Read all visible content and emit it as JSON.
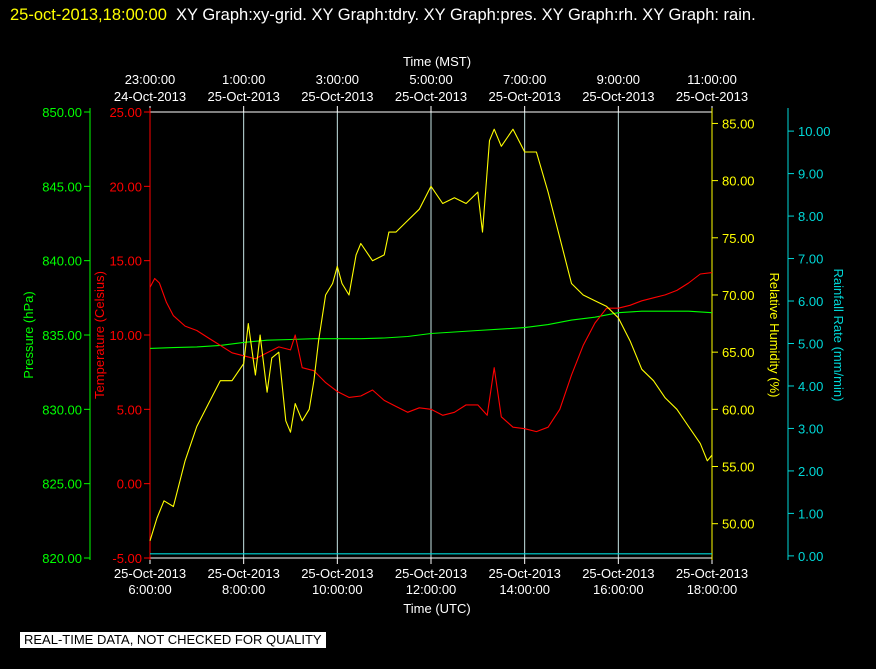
{
  "title": {
    "timestamp": "25-oct-2013,18:00:00",
    "graphs": "XY Graph:xy-grid.  XY Graph:tdry.  XY Graph:pres.  XY Graph:rh.  XY Graph: rain."
  },
  "disclaimer": "REAL-TIME DATA, NOT CHECKED FOR QUALITY",
  "colors": {
    "background": "#000000",
    "grid": "#c8e6e6",
    "axes": "#ffffff",
    "pressure": "#00ff00",
    "temperature": "#ff0000",
    "humidity": "#ffff00",
    "rain": "#00d8d8"
  },
  "chart_data": {
    "type": "line",
    "x_top_title": "Time (MST)",
    "x_bottom_title": "Time (UTC)",
    "x_range_utc_hours": [
      6,
      18
    ],
    "grid": true,
    "x_ticks_top": [
      {
        "time": "23:00:00",
        "date": "24-Oct-2013"
      },
      {
        "time": "1:00:00",
        "date": "25-Oct-2013"
      },
      {
        "time": "3:00:00",
        "date": "25-Oct-2013"
      },
      {
        "time": "5:00:00",
        "date": "25-Oct-2013"
      },
      {
        "time": "7:00:00",
        "date": "25-Oct-2013"
      },
      {
        "time": "9:00:00",
        "date": "25-Oct-2013"
      },
      {
        "time": "11:00:00",
        "date": "25-Oct-2013"
      }
    ],
    "x_ticks_bottom": [
      {
        "date": "25-Oct-2013",
        "time": "6:00:00"
      },
      {
        "date": "25-Oct-2013",
        "time": "8:00:00"
      },
      {
        "date": "25-Oct-2013",
        "time": "10:00:00"
      },
      {
        "date": "25-Oct-2013",
        "time": "12:00:00"
      },
      {
        "date": "25-Oct-2013",
        "time": "14:00:00"
      },
      {
        "date": "25-Oct-2013",
        "time": "16:00:00"
      },
      {
        "date": "25-Oct-2013",
        "time": "18:00:00"
      }
    ],
    "axes": {
      "pressure": {
        "label": "Pressure (hPa)",
        "range": [
          820,
          850
        ],
        "ticks": [
          "820.00",
          "825.00",
          "830.00",
          "835.00",
          "840.00",
          "845.00",
          "850.00"
        ]
      },
      "temperature": {
        "label": "Temperature (Celsius)",
        "range": [
          -5,
          25
        ],
        "ticks": [
          "-5.00",
          "0.00",
          "5.00",
          "10.00",
          "15.00",
          "20.00",
          "25.00"
        ]
      },
      "humidity": {
        "label": "Relative Humidity (%)",
        "range": [
          47,
          86
        ],
        "ticks": [
          "50.00",
          "55.00",
          "60.00",
          "65.00",
          "70.00",
          "75.00",
          "80.00",
          "85.00"
        ]
      },
      "rain": {
        "label": "Rainfall Rate (mm/min)",
        "range": [
          -0.05,
          10.45
        ],
        "ticks": [
          "0.00",
          "1.00",
          "2.00",
          "3.00",
          "4.00",
          "5.00",
          "6.00",
          "7.00",
          "8.00",
          "9.00",
          "10.00"
        ]
      }
    },
    "series": [
      {
        "key": "pressure",
        "axis": "pressure",
        "x_utc_hours": [
          6.0,
          6.5,
          7.0,
          7.5,
          8.0,
          8.5,
          9.0,
          9.5,
          10.0,
          10.5,
          11.0,
          11.5,
          12.0,
          12.5,
          13.0,
          13.5,
          14.0,
          14.5,
          15.0,
          15.5,
          16.0,
          16.5,
          17.0,
          17.5,
          18.0
        ],
        "values": [
          834.1,
          834.15,
          834.2,
          834.3,
          834.5,
          834.65,
          834.7,
          834.75,
          834.75,
          834.75,
          834.8,
          834.9,
          835.1,
          835.2,
          835.3,
          835.4,
          835.5,
          835.7,
          836.0,
          836.2,
          836.5,
          836.6,
          836.6,
          836.6,
          836.5
        ]
      },
      {
        "key": "temperature",
        "axis": "temperature",
        "x_utc_hours": [
          6.0,
          6.1,
          6.2,
          6.35,
          6.5,
          6.75,
          7.0,
          7.25,
          7.5,
          7.75,
          8.0,
          8.25,
          8.5,
          8.75,
          9.0,
          9.1,
          9.25,
          9.5,
          9.75,
          10.0,
          10.25,
          10.5,
          10.75,
          11.0,
          11.25,
          11.5,
          11.75,
          12.0,
          12.25,
          12.5,
          12.75,
          13.0,
          13.2,
          13.35,
          13.5,
          13.75,
          14.0,
          14.25,
          14.5,
          14.75,
          15.0,
          15.25,
          15.5,
          15.75,
          16.0,
          16.25,
          16.5,
          16.75,
          17.0,
          17.25,
          17.5,
          17.75,
          18.0
        ],
        "values": [
          13.2,
          13.8,
          13.5,
          12.2,
          11.3,
          10.6,
          10.3,
          9.8,
          9.3,
          8.8,
          8.6,
          8.4,
          8.8,
          9.2,
          9.0,
          10.0,
          7.8,
          7.6,
          6.8,
          6.2,
          5.8,
          5.9,
          6.3,
          5.6,
          5.2,
          4.8,
          5.1,
          5.0,
          4.6,
          4.8,
          5.3,
          5.3,
          4.6,
          7.8,
          4.5,
          3.8,
          3.7,
          3.5,
          3.8,
          5.0,
          7.3,
          9.3,
          10.8,
          11.8,
          11.8,
          12.0,
          12.3,
          12.5,
          12.7,
          13.0,
          13.5,
          14.1,
          14.2
        ]
      },
      {
        "key": "humidity",
        "axis": "humidity",
        "x_utc_hours": [
          6.0,
          6.15,
          6.3,
          6.5,
          6.75,
          7.0,
          7.25,
          7.5,
          7.75,
          8.0,
          8.1,
          8.25,
          8.35,
          8.5,
          8.6,
          8.75,
          8.9,
          9.0,
          9.1,
          9.25,
          9.4,
          9.5,
          9.6,
          9.75,
          9.9,
          10.0,
          10.1,
          10.25,
          10.4,
          10.5,
          10.75,
          11.0,
          11.1,
          11.25,
          11.5,
          11.75,
          12.0,
          12.25,
          12.5,
          12.75,
          13.0,
          13.1,
          13.25,
          13.35,
          13.5,
          13.75,
          14.0,
          14.25,
          14.5,
          14.75,
          15.0,
          15.25,
          15.5,
          15.75,
          16.0,
          16.25,
          16.5,
          16.75,
          17.0,
          17.25,
          17.5,
          17.75,
          17.9,
          18.0
        ],
        "values": [
          48.5,
          50.5,
          52.0,
          51.5,
          55.5,
          58.5,
          60.5,
          62.5,
          62.5,
          64.0,
          67.5,
          63.0,
          66.5,
          61.5,
          64.5,
          65.0,
          59.0,
          58.0,
          60.5,
          59.0,
          60.0,
          62.5,
          66.0,
          70.0,
          71.0,
          72.5,
          71.0,
          70.0,
          73.5,
          74.5,
          73.0,
          73.5,
          75.5,
          75.5,
          76.5,
          77.5,
          79.5,
          78.0,
          78.5,
          78.0,
          79.0,
          75.5,
          83.5,
          84.5,
          83.0,
          84.5,
          82.5,
          82.5,
          79.0,
          75.0,
          71.0,
          70.0,
          69.5,
          69.0,
          68.0,
          66.0,
          63.5,
          62.5,
          61.0,
          60.0,
          58.5,
          57.0,
          55.5,
          56.0
        ]
      },
      {
        "key": "rain",
        "axis": "rain",
        "x_utc_hours": [
          6.0,
          18.0
        ],
        "values": [
          0.05,
          0.05
        ]
      }
    ]
  }
}
